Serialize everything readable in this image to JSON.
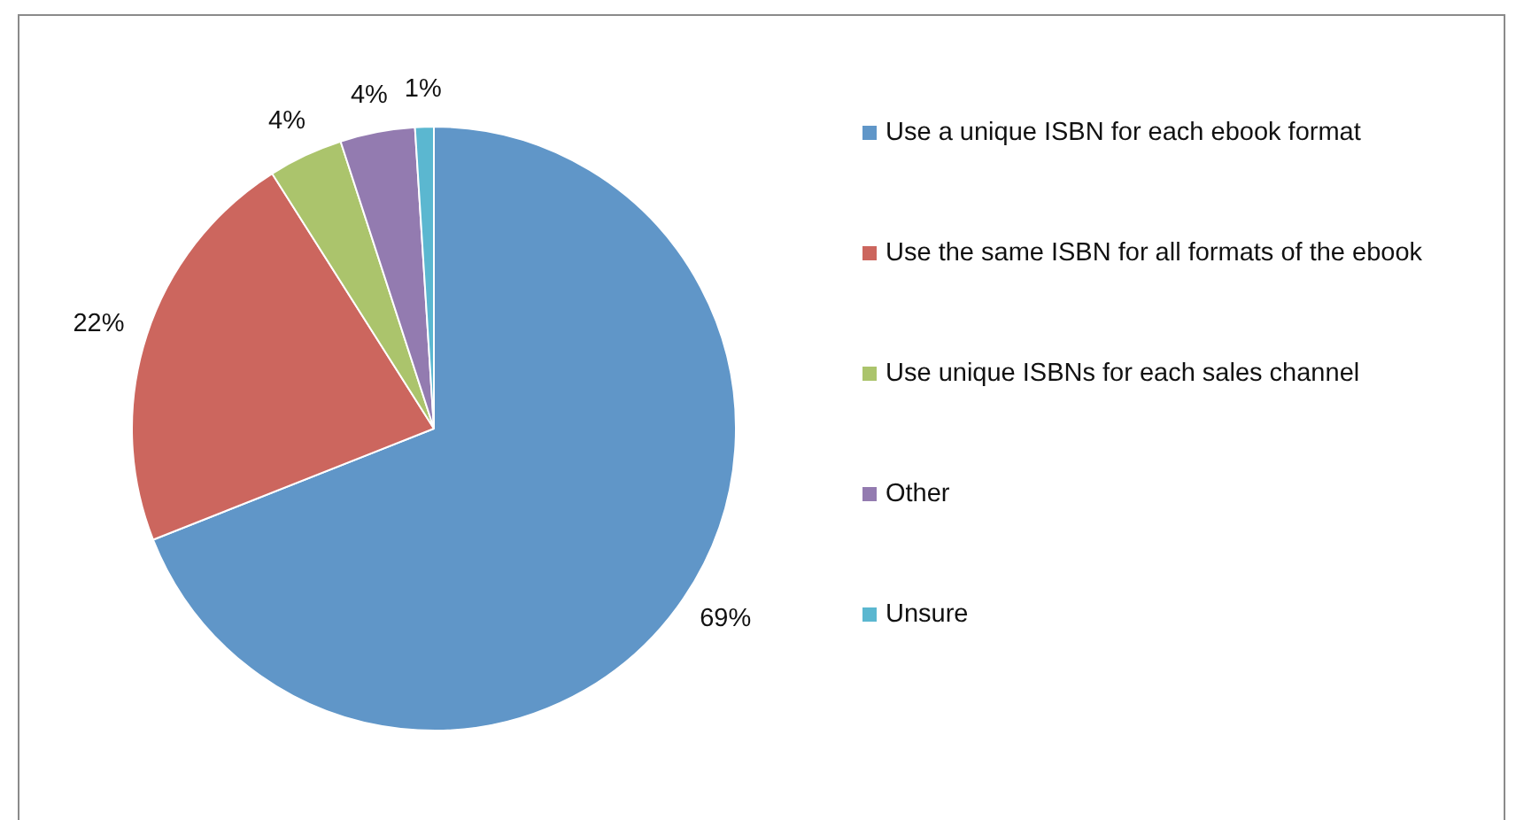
{
  "chart_data": {
    "type": "pie",
    "categories": [
      "Use a unique ISBN for each ebook format",
      "Use the same ISBN for all formats of the ebook",
      "Use unique ISBNs for each sales channel",
      "Other",
      "Unsure"
    ],
    "values": [
      69,
      22,
      4,
      4,
      1
    ],
    "colors": [
      "#6096c8",
      "#cc665e",
      "#abc46c",
      "#937bb0",
      "#5bb7d0"
    ],
    "value_labels": [
      "69%",
      "22%",
      "4%",
      "4%",
      "1%"
    ],
    "legend": "right"
  }
}
